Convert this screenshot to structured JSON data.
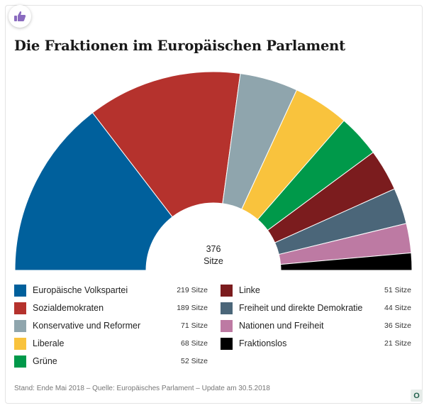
{
  "header": {
    "badge_icon": "thumbs-up-icon",
    "badge_color": "#8a6bbf",
    "title": "Die Fraktionen im Europäischen Parlament"
  },
  "chart_data": {
    "type": "pie",
    "variant": "half-donut",
    "title": "Die Fraktionen im Europäischen Parlament",
    "center_label": {
      "value": "376",
      "unit": "Sitze"
    },
    "unit_suffix": "Sitze",
    "slices": [
      {
        "label": "Europäische Volkspartei",
        "value": 219,
        "value_text": "219 Sitze",
        "color": "#00609c"
      },
      {
        "label": "Sozialdemokraten",
        "value": 189,
        "value_text": "189 Sitze",
        "color": "#b5322d"
      },
      {
        "label": "Konservative und Reformer",
        "value": 71,
        "value_text": "71 Sitze",
        "color": "#8fa5ad"
      },
      {
        "label": "Liberale",
        "value": 68,
        "value_text": "68 Sitze",
        "color": "#f9c33d"
      },
      {
        "label": "Grüne",
        "value": 52,
        "value_text": "52 Sitze",
        "color": "#00994a"
      },
      {
        "label": "Linke",
        "value": 51,
        "value_text": "51 Sitze",
        "color": "#7b1c1e"
      },
      {
        "label": "Freiheit und direkte Demokratie",
        "value": 44,
        "value_text": "44 Sitze",
        "color": "#4b6679"
      },
      {
        "label": "Nationen und Freiheit",
        "value": 36,
        "value_text": "36 Sitze",
        "color": "#bd7aa3"
      },
      {
        "label": "Fraktionslos",
        "value": 21,
        "value_text": "21 Sitze",
        "color": "#000000"
      }
    ],
    "legend": "bottom"
  },
  "footer": {
    "source": "Stand: Ende Mai 2018 – Quelle: Europäisches Parlament – Update am 30.5.2018",
    "corner_icon": "logo-o-icon",
    "corner_text": "O"
  }
}
